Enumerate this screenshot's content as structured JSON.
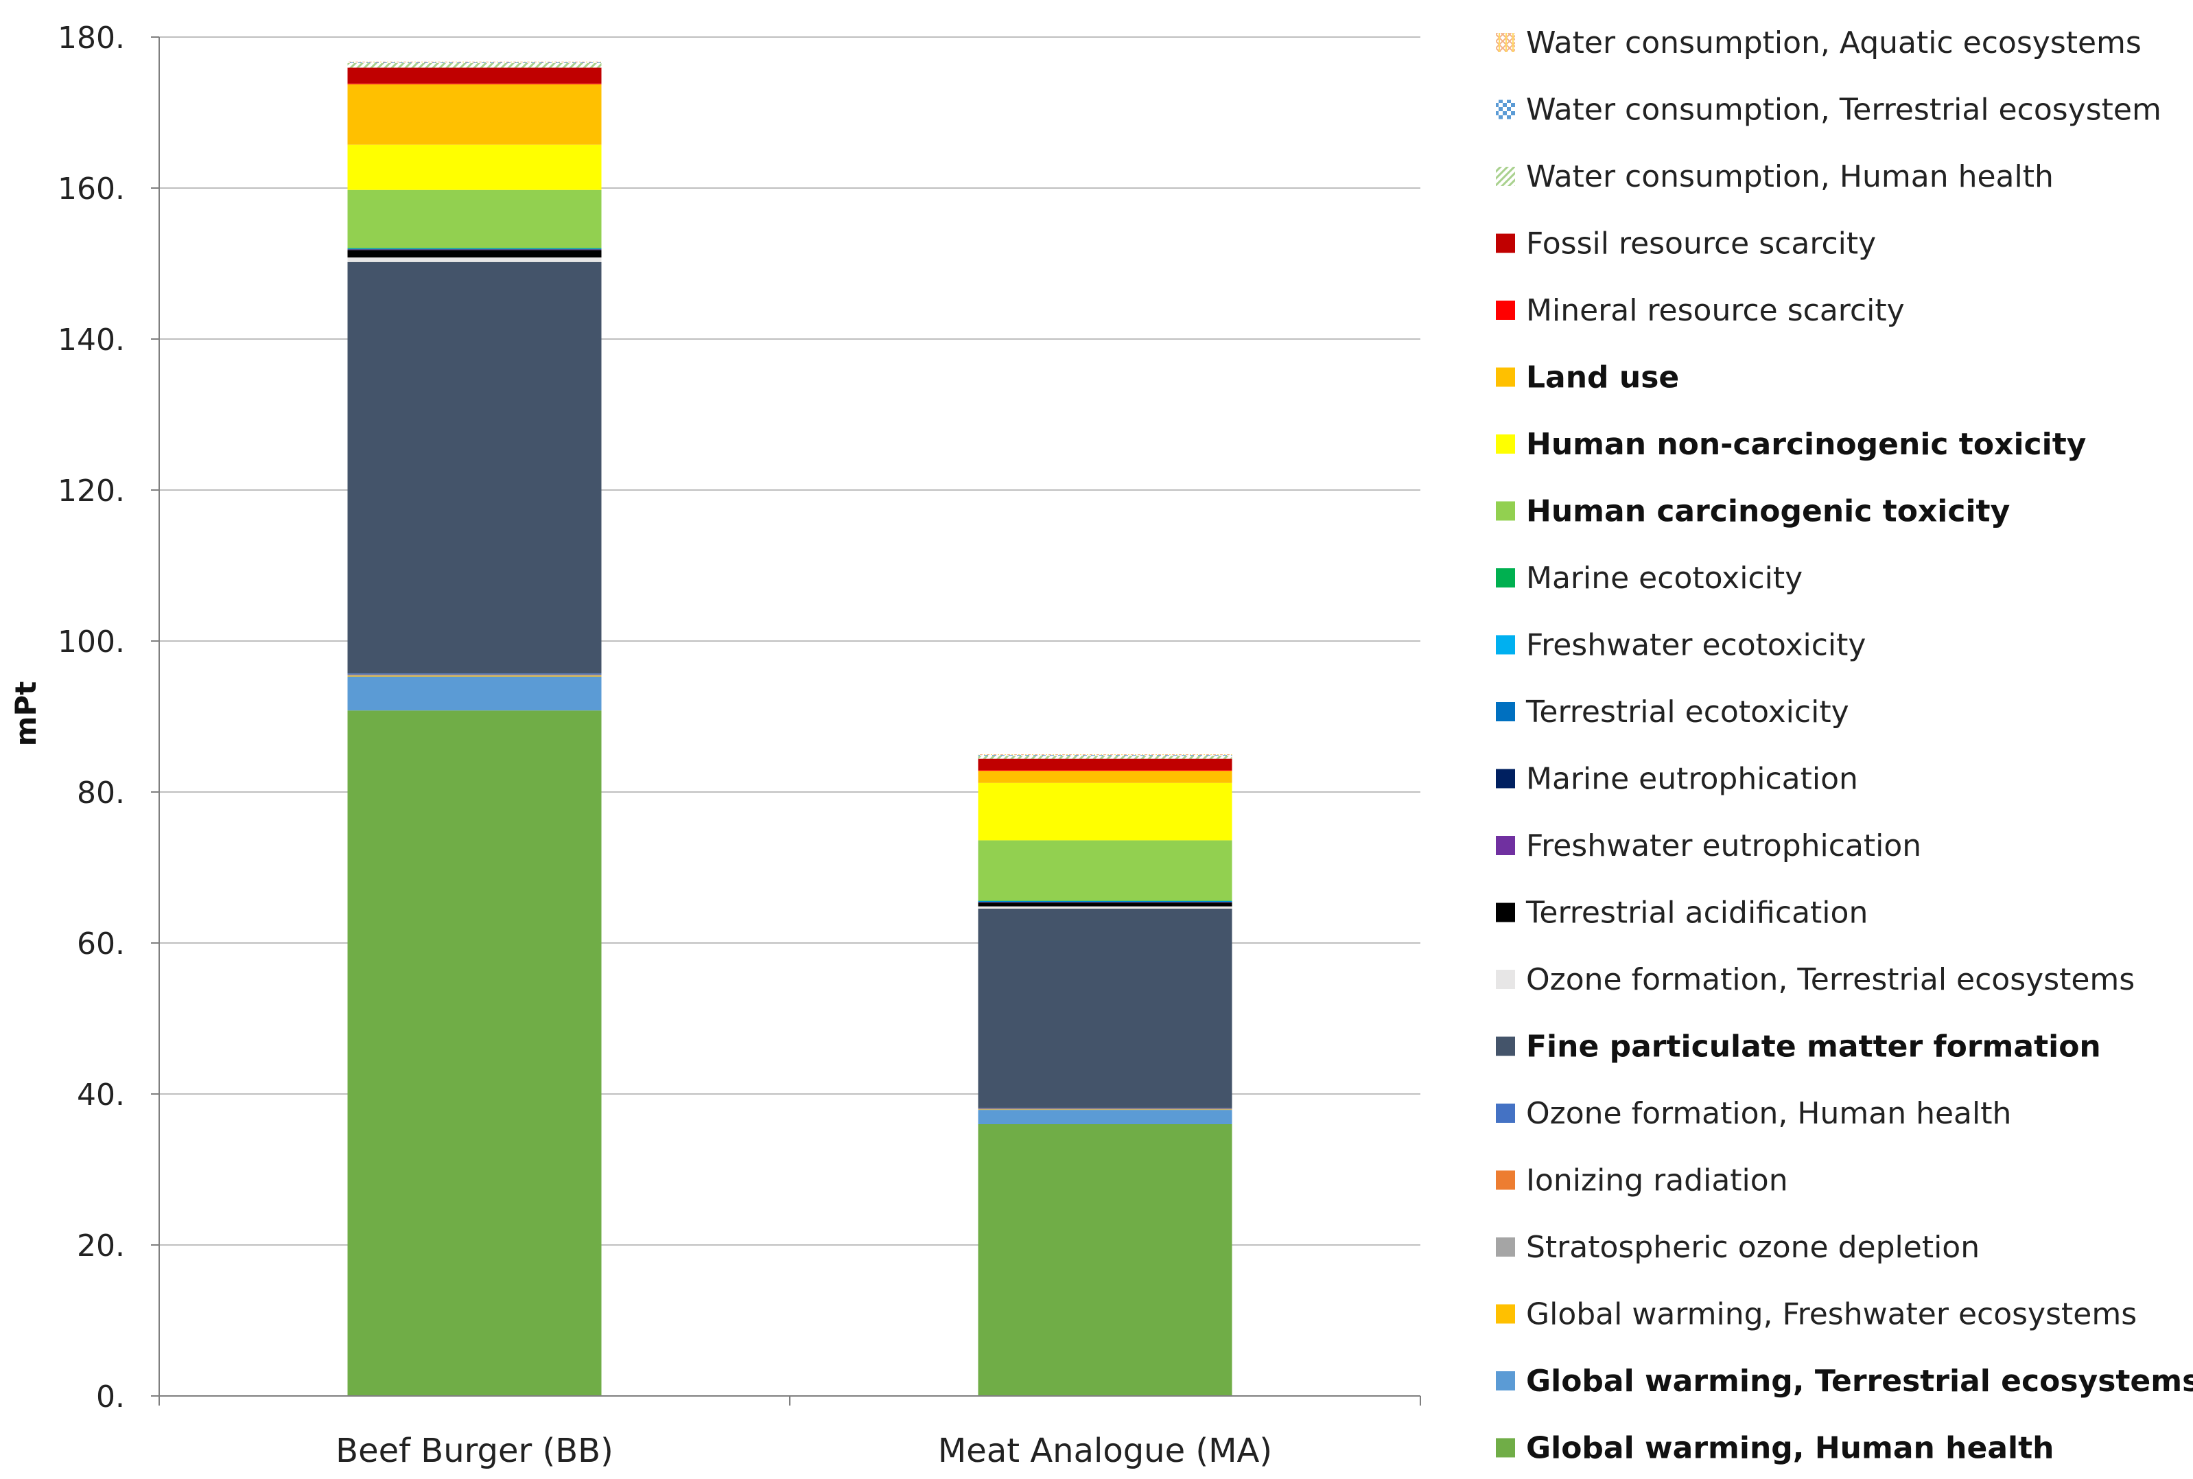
{
  "chart_data": {
    "type": "bar",
    "stacked": true,
    "title": "",
    "xlabel": "",
    "ylabel": "mPt",
    "ylim": [
      0,
      180
    ],
    "yticks": [
      0,
      20,
      40,
      60,
      80,
      100,
      120,
      140,
      160,
      180
    ],
    "ytick_labels": [
      "0.",
      "20.",
      "40.",
      "60.",
      "80.",
      "100.",
      "120.",
      "140.",
      "160.",
      "180."
    ],
    "grid": true,
    "legend_position": "right",
    "categories": [
      "Beef Burger (BB)",
      "Meat Analogue (MA)"
    ],
    "series": [
      {
        "name": "Global warming, Human health",
        "color": "#70AD47",
        "bold": true,
        "pattern": "solid",
        "values": [
          90.8,
          36.0
        ]
      },
      {
        "name": "Global warming, Terrestrial ecosystems",
        "color": "#5B9BD5",
        "bold": true,
        "pattern": "solid",
        "values": [
          4.5,
          1.9
        ]
      },
      {
        "name": "Global warming, Freshwater ecosystems",
        "color": "#FFC000",
        "bold": false,
        "pattern": "solid",
        "values": [
          0.1,
          0.05
        ]
      },
      {
        "name": "Stratospheric ozone depletion",
        "color": "#A5A5A5",
        "bold": false,
        "pattern": "solid",
        "values": [
          0.1,
          0.05
        ]
      },
      {
        "name": "Ionizing radiation",
        "color": "#ED7D31",
        "bold": false,
        "pattern": "solid",
        "values": [
          0.05,
          0.05
        ]
      },
      {
        "name": "Ozone formation, Human health",
        "color": "#4472C4",
        "bold": false,
        "pattern": "solid",
        "values": [
          0.15,
          0.1
        ]
      },
      {
        "name": "Fine particulate matter formation",
        "color": "#44546A",
        "bold": true,
        "pattern": "solid",
        "values": [
          54.5,
          26.4
        ]
      },
      {
        "name": "Ozone formation, Terrestrial ecosystems",
        "color": "#E7E6E6",
        "bold": false,
        "pattern": "solid",
        "values": [
          0.6,
          0.3
        ]
      },
      {
        "name": "Terrestrial acidification",
        "color": "#000000",
        "bold": false,
        "pattern": "solid",
        "values": [
          1.0,
          0.5
        ]
      },
      {
        "name": "Freshwater eutrophication",
        "color": "#7030A0",
        "bold": false,
        "pattern": "solid",
        "values": [
          0.05,
          0.05
        ]
      },
      {
        "name": "Marine eutrophication",
        "color": "#002060",
        "bold": false,
        "pattern": "solid",
        "values": [
          0.05,
          0.05
        ]
      },
      {
        "name": "Terrestrial ecotoxicity",
        "color": "#0070C0",
        "bold": false,
        "pattern": "solid",
        "values": [
          0.05,
          0.05
        ]
      },
      {
        "name": "Freshwater ecotoxicity",
        "color": "#00B0F0",
        "bold": false,
        "pattern": "solid",
        "values": [
          0.05,
          0.05
        ]
      },
      {
        "name": "Marine ecotoxicity",
        "color": "#00B050",
        "bold": false,
        "pattern": "solid",
        "values": [
          0.05,
          0.05
        ]
      },
      {
        "name": "Human carcinogenic toxicity",
        "color": "#92D050",
        "bold": true,
        "pattern": "solid",
        "values": [
          7.7,
          8.0
        ]
      },
      {
        "name": "Human non-carcinogenic toxicity",
        "color": "#FFFF00",
        "bold": true,
        "pattern": "solid",
        "values": [
          6.0,
          7.6
        ]
      },
      {
        "name": "Land use",
        "color": "#FFC000",
        "bold": true,
        "pattern": "solid",
        "values": [
          8.0,
          1.6
        ]
      },
      {
        "name": "Mineral resource scarcity",
        "color": "#FF0000",
        "bold": false,
        "pattern": "solid",
        "values": [
          0.1,
          0.1
        ]
      },
      {
        "name": "Fossil resource scarcity",
        "color": "#C00000",
        "bold": false,
        "pattern": "solid",
        "values": [
          2.1,
          1.5
        ]
      },
      {
        "name": "Water consumption, Human health",
        "color": "#A9D18E",
        "bold": false,
        "pattern": "diagonal",
        "values": [
          0.6,
          0.4
        ]
      },
      {
        "name": "Water consumption, Terrestrial ecosystem",
        "color": "#5B9BD5",
        "bold": false,
        "pattern": "checker",
        "values": [
          0.1,
          0.1
        ]
      },
      {
        "name": "Water consumption, Aquatic ecosystems",
        "color": "#FFD966",
        "bold": false,
        "pattern": "cross",
        "values": [
          0.1,
          0.1
        ]
      }
    ]
  }
}
